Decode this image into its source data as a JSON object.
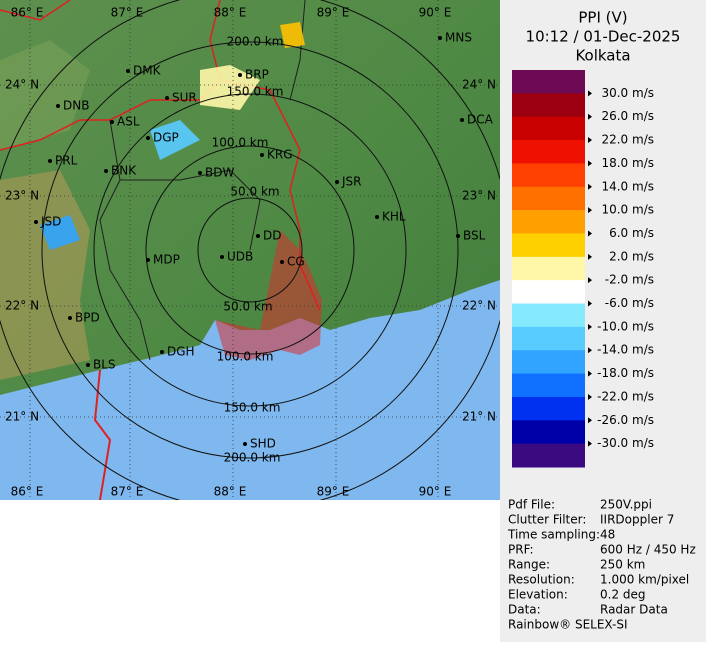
{
  "header": {
    "title": "PPI (V)",
    "time": "10:12 / 01-Dec-2025",
    "site": "Kolkata"
  },
  "map": {
    "lon_labels": [
      "86° E",
      "87° E",
      "88° E",
      "89° E",
      "90° E"
    ],
    "lat_labels": [
      "24° N",
      "23° N",
      "22° N",
      "21° N"
    ],
    "range_labels": [
      "50.0 km",
      "100.0 km",
      "150.0 km",
      "200.0 km",
      "50.0 km",
      "100.0 km",
      "150.0 km",
      "200.0 km"
    ],
    "cities": [
      "MNS",
      "DMK",
      "BRP",
      "DNB",
      "SUR",
      "ASL",
      "DCA",
      "DGP",
      "PRL",
      "KRG",
      "BNK",
      "BDW",
      "JSR",
      "KHL",
      "JSD",
      "BSL",
      "DD",
      "MDP",
      "UDB",
      "CG",
      "BPD",
      "DGH",
      "BLS",
      "SHD"
    ]
  },
  "legend": {
    "labels": [
      "30.0 m/s",
      "26.0 m/s",
      "22.0 m/s",
      "18.0 m/s",
      "14.0 m/s",
      "10.0 m/s",
      "6.0 m/s",
      "2.0 m/s",
      "-2.0 m/s",
      "-6.0 m/s",
      "-10.0 m/s",
      "-14.0 m/s",
      "-18.0 m/s",
      "-22.0 m/s",
      "-26.0 m/s",
      "-30.0 m/s"
    ],
    "colors": [
      "#6e0a55",
      "#9c0010",
      "#c80000",
      "#ee1000",
      "#ff4000",
      "#ff7000",
      "#ffa000",
      "#ffd000",
      "#fff6a8",
      "#ffffff",
      "#86eaff",
      "#58cbff",
      "#30a4ff",
      "#1070ff",
      "#0030f0",
      "#0000a8",
      "#3c0a80"
    ]
  },
  "info": {
    "rows": [
      [
        "Pdf File:",
        "250V.ppi"
      ],
      [
        "Clutter Filter:",
        "IIRDoppler 7"
      ],
      [
        "Time sampling:",
        "48"
      ],
      [
        "PRF:",
        "600 Hz / 450 Hz"
      ],
      [
        "Range:",
        "250 km"
      ],
      [
        "Resolution:",
        "1.000 km/pixel"
      ],
      [
        "Elevation:",
        "0.2 deg"
      ],
      [
        "Data:",
        "Radar Data"
      ]
    ],
    "footer": "Rainbow® SELEX-SI"
  }
}
